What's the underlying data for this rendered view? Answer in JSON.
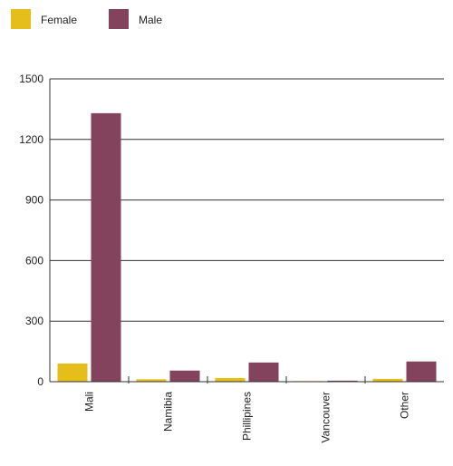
{
  "chart_data": {
    "type": "bar",
    "categories": [
      "Mali",
      "Namibia",
      "Phillipines",
      "Vancouver",
      "Other"
    ],
    "series": [
      {
        "name": "Female",
        "color": "#E5BE1A",
        "values": [
          90,
          12,
          18,
          3,
          14
        ]
      },
      {
        "name": "Male",
        "color": "#84435D",
        "values": [
          1330,
          55,
          95,
          5,
          100
        ]
      }
    ],
    "ylim": [
      0,
      1500
    ],
    "yticks": [
      0,
      300,
      600,
      900,
      1200,
      1500
    ],
    "grid": true,
    "legend": "top-left"
  }
}
